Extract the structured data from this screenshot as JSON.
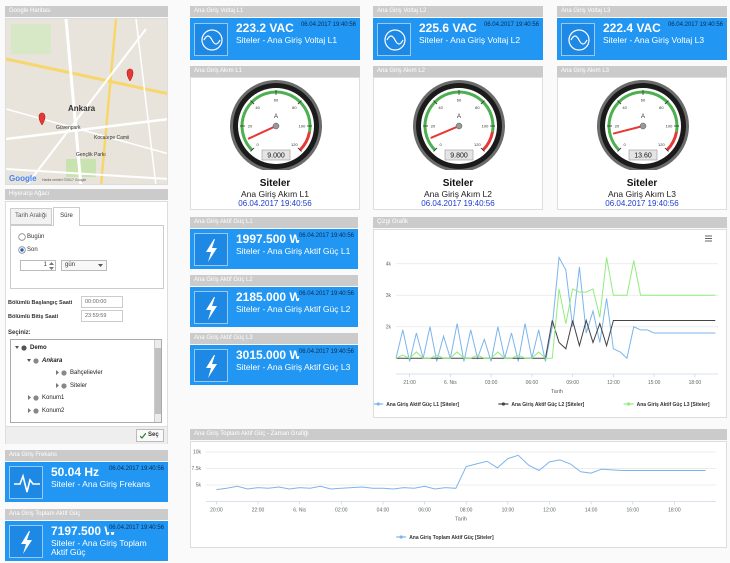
{
  "map": {
    "header": "Google Haritası",
    "places": [
      "Ankara",
      "Güvenpark",
      "Kocatepe Camii",
      "Gençlik Parkı"
    ],
    "logo": "Google",
    "footer": "Harita verileri ©2017 Google"
  },
  "hierarchy": {
    "header": "Hiyerarşi Ağacı",
    "tabs": [
      "Tarih Aralığı",
      "Süre"
    ],
    "radios": [
      "Bugün",
      "Son"
    ],
    "count": "1",
    "unit": "gün",
    "start_label": "Bölümlü Başlangıç Saati",
    "start_value": "00:00:00",
    "end_label": "Bölümlü Bitiş Saati",
    "end_value": "23:59:59",
    "select_label": "Seçiniz:",
    "tree": {
      "label": "Demo",
      "children": [
        {
          "label": "Ankara",
          "children": [
            {
              "label": "Bahçelievler"
            },
            {
              "label": "Siteler"
            }
          ]
        },
        {
          "label": "Konum1"
        },
        {
          "label": "Konum2"
        }
      ]
    },
    "button": "Seç"
  },
  "voltage_cards": [
    {
      "header": "Ana Giriş Voltaj L1",
      "value": "223.2 VAC",
      "subtitle": "Siteler - Ana Giriş Voltaj L1",
      "date": "06.04.2017 19:40:56"
    },
    {
      "header": "Ana Giriş Voltaj L2",
      "value": "225.6 VAC",
      "subtitle": "Siteler - Ana Giriş Voltaj L2",
      "date": "06.04.2017 19:40:56"
    },
    {
      "header": "Ana Giriş Voltaj L3",
      "value": "222.4 VAC",
      "subtitle": "Siteler - Ana Giriş Voltaj L3",
      "date": "06.04.2017 19:40:56"
    }
  ],
  "gauges": [
    {
      "header": "Ana Giriş Akım L1",
      "value": 9,
      "value_label": "9.000",
      "range": [
        0,
        120
      ],
      "ticks": [
        0,
        20,
        40,
        60,
        80,
        100,
        120
      ],
      "site": "Siteler",
      "name": "Ana Giriş Akım L1",
      "date": "06.04.2017 19:40:56"
    },
    {
      "header": "Ana Giriş Akım L2",
      "value": 9.8,
      "value_label": "9.800",
      "range": [
        0,
        120
      ],
      "ticks": [
        0,
        20,
        40,
        60,
        80,
        100,
        120
      ],
      "site": "Siteler",
      "name": "Ana Giriş Akım L2",
      "date": "06.04.2017 19:40:56"
    },
    {
      "header": "Ana Giriş Akım L3",
      "value": 13.6,
      "value_label": "13.60",
      "range": [
        0,
        120
      ],
      "ticks": [
        0,
        20,
        40,
        60,
        80,
        100,
        120
      ],
      "site": "Siteler",
      "name": "Ana Giriş Akım L3",
      "date": "06.04.2017 19:40:56"
    }
  ],
  "power_cards": [
    {
      "header": "Ana Giriş Aktif Güç L1",
      "value": "1997.500 W",
      "subtitle": "Siteler - Ana Giriş Aktif Güç L1",
      "date": "06.04.2017 19:40:56"
    },
    {
      "header": "Ana Giriş Aktif Güç L2",
      "value": "2185.000 W",
      "subtitle": "Siteler - Ana Giriş Aktif Güç L2",
      "date": "06.04.2017 19:40:56"
    },
    {
      "header": "Ana Giriş Aktif Güç L3",
      "value": "3015.000 W",
      "subtitle": "Siteler - Ana Giriş Aktif Güç L3",
      "date": "06.04.2017 19:40:56"
    }
  ],
  "frequency_card": {
    "header": "Ana Giriş Frekans",
    "value": "50.04 Hz",
    "subtitle": "Siteler - Ana Giriş Frekans",
    "date": "06.04.2017 19:40:56"
  },
  "total_power_card": {
    "header": "Ana Giriş Toplam Aktif Güç",
    "value": "7197.500 W",
    "subtitle": "Siteler - Ana Giriş Toplam Aktif Güç",
    "date": "06.04.2017 19:40:56"
  },
  "chart_data": [
    {
      "type": "line",
      "title": "Çizgi Grafik",
      "x_label": "Tarih",
      "xlim": [
        -4,
        19.7
      ],
      "xticks": [
        {
          "value": -3,
          "label": "21:00"
        },
        {
          "value": 0,
          "label": "6. Nis"
        },
        {
          "value": 3,
          "label": "03:00"
        },
        {
          "value": 6,
          "label": "06:00"
        },
        {
          "value": 9,
          "label": "09:00"
        },
        {
          "value": 12,
          "label": "12:00"
        },
        {
          "value": 15,
          "label": "15:00"
        },
        {
          "value": 18,
          "label": "18:00"
        }
      ],
      "ylim": [
        500,
        4500
      ],
      "yticks": [
        {
          "value": 2000,
          "label": "2k"
        },
        {
          "value": 3000,
          "label": "3k"
        },
        {
          "value": 4000,
          "label": "4k"
        }
      ],
      "grid": true,
      "x": [
        -4,
        -3.5,
        -3,
        -2.5,
        -2,
        -1.5,
        -1,
        -0.5,
        0,
        0.5,
        1,
        1.5,
        2,
        2.5,
        3,
        3.5,
        4,
        4.5,
        5,
        5.5,
        6,
        6.5,
        7,
        7.5,
        8,
        8.5,
        9,
        9.5,
        10,
        10.5,
        11,
        11.5,
        12,
        12.5,
        13,
        13.5,
        14,
        14.5,
        15,
        15.5,
        16,
        16.5,
        17,
        17.5,
        18,
        18.5,
        19,
        19.5
      ],
      "series": [
        {
          "name": "Ana Giriş Aktif Güç L1 [Siteler]",
          "color": "#7cb5ec",
          "values": [
            1000,
            1900,
            900,
            1800,
            1000,
            2000,
            900,
            1700,
            1000,
            2100,
            900,
            1900,
            1000,
            1600,
            900,
            2000,
            1000,
            1800,
            900,
            2100,
            1000,
            1900,
            900,
            2000,
            4200,
            3800,
            2000,
            3900,
            1800,
            2500,
            1500,
            2900,
            1300,
            1200,
            1000,
            2000,
            1900,
            1900,
            1800,
            1800,
            1800,
            1800,
            1800,
            1800,
            1800,
            1800,
            1800,
            1800
          ]
        },
        {
          "name": "Ana Giriş Aktif Güç L2 [Siteler]",
          "color": "#434348",
          "values": [
            1000,
            1000,
            1000,
            1000,
            1000,
            1000,
            1000,
            1000,
            1000,
            1000,
            1000,
            1000,
            1000,
            1000,
            1000,
            1000,
            1000,
            1000,
            1000,
            1000,
            1000,
            1000,
            1000,
            2200,
            1500,
            1300,
            2200,
            1400,
            2200,
            1500,
            2100,
            1400,
            2200,
            2200,
            2200,
            2200,
            2200,
            2200,
            2200,
            2200,
            2200,
            2200,
            2200,
            2200,
            2200,
            2200,
            2200,
            2200
          ]
        },
        {
          "name": "Ana Giriş Aktif Güç L3 [Siteler]",
          "color": "#90ed7d",
          "values": [
            1000,
            1100,
            1000,
            1200,
            1000,
            1000,
            1100,
            1000,
            1000,
            1200,
            1000,
            1000,
            1100,
            1000,
            1000,
            1200,
            1000,
            1000,
            1100,
            1000,
            1000,
            1200,
            1000,
            1000,
            3200,
            2100,
            3200,
            3100,
            3100,
            3200,
            2300,
            4200,
            3000,
            3000,
            3000,
            4100,
            3000,
            3000,
            3000,
            3000,
            3000,
            3000,
            3000,
            3000,
            3000,
            3000,
            3000,
            3000
          ]
        }
      ]
    },
    {
      "type": "line",
      "title": "Ana Giriş Toplam Aktif Güç - Zaman Grafiği",
      "x_label": "Tarih",
      "xlim": [
        -4.5,
        20
      ],
      "xticks": [
        {
          "value": -4,
          "label": "20:00"
        },
        {
          "value": -2,
          "label": "22:00"
        },
        {
          "value": 0,
          "label": "6. Nis"
        },
        {
          "value": 2,
          "label": "02:00"
        },
        {
          "value": 4,
          "label": "04:00"
        },
        {
          "value": 6,
          "label": "06:00"
        },
        {
          "value": 8,
          "label": "08:00"
        },
        {
          "value": 10,
          "label": "10:00"
        },
        {
          "value": 12,
          "label": "12:00"
        },
        {
          "value": 14,
          "label": "14:00"
        },
        {
          "value": 16,
          "label": "16:00"
        },
        {
          "value": 18,
          "label": "18:00"
        }
      ],
      "ylim": [
        2500,
        10000
      ],
      "yticks": [
        {
          "value": 5000,
          "label": "5k"
        },
        {
          "value": 7500,
          "label": "7.5k"
        },
        {
          "value": 10000,
          "label": "10k"
        }
      ],
      "grid": true,
      "x": [
        -4,
        -3.5,
        -3,
        -2.5,
        -2,
        -1.5,
        -1,
        -0.5,
        0,
        0.5,
        1,
        1.5,
        2,
        2.5,
        3,
        3.5,
        4,
        4.5,
        5,
        5.5,
        6,
        6.5,
        7,
        7.5,
        8,
        8.5,
        9,
        9.5,
        10,
        10.5,
        11,
        11.5,
        12,
        12.5,
        13,
        13.5,
        14,
        14.5,
        15,
        15.5,
        16,
        16.5,
        17,
        17.5,
        18,
        18.5,
        19,
        19.5
      ],
      "series": [
        {
          "name": "Ana Giriş Toplam Aktif Güç [Siteler]",
          "color": "#7cb5ec",
          "values": [
            4300,
            4500,
            4800,
            4400,
            4600,
            4500,
            4700,
            4400,
            4600,
            4500,
            4800,
            4400,
            4500,
            4600,
            4700,
            4500,
            4500,
            4400,
            4600,
            4500,
            4800,
            4400,
            4600,
            4500,
            7800,
            8200,
            8600,
            7600,
            9000,
            9500,
            8000,
            7200,
            8500,
            8800,
            8200,
            7000,
            6800,
            7400,
            7300,
            7200,
            7200,
            7200,
            7200,
            7200,
            7200,
            7200,
            7200,
            7200
          ]
        }
      ]
    }
  ]
}
